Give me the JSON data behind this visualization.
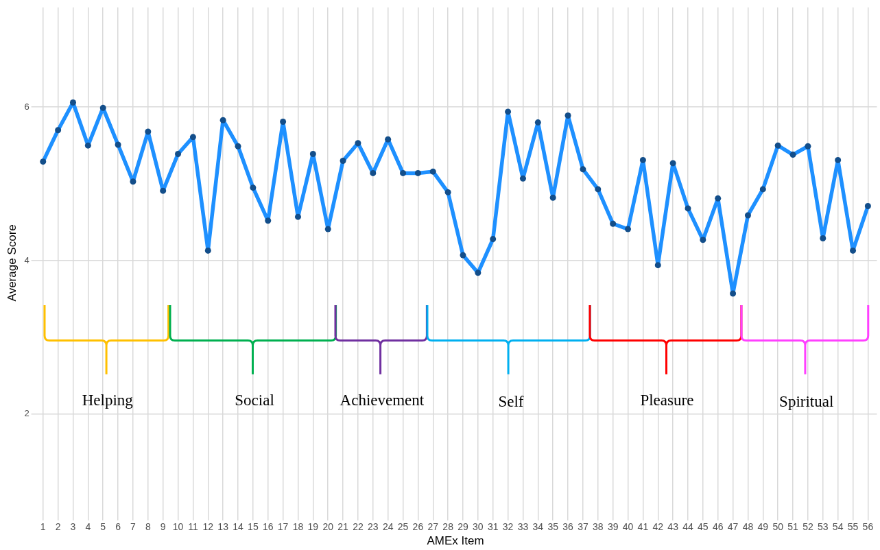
{
  "chart_data": {
    "type": "line",
    "xlabel": "AMEx Item",
    "ylabel": "Average Score",
    "x": [
      1,
      2,
      3,
      4,
      5,
      6,
      7,
      8,
      9,
      10,
      11,
      12,
      13,
      14,
      15,
      16,
      17,
      18,
      19,
      20,
      21,
      22,
      23,
      24,
      25,
      26,
      27,
      28,
      29,
      30,
      31,
      32,
      33,
      34,
      35,
      36,
      37,
      38,
      39,
      40,
      41,
      42,
      43,
      44,
      45,
      46,
      47,
      48,
      49,
      50,
      51,
      52,
      53,
      54,
      55,
      56
    ],
    "xlim": [
      0.4,
      56.6
    ],
    "xticks": [
      1,
      2,
      3,
      4,
      5,
      6,
      7,
      8,
      9,
      10,
      11,
      12,
      13,
      14,
      15,
      16,
      17,
      18,
      19,
      20,
      21,
      22,
      23,
      24,
      25,
      26,
      27,
      28,
      29,
      30,
      31,
      32,
      33,
      34,
      35,
      36,
      37,
      38,
      39,
      40,
      41,
      42,
      43,
      44,
      45,
      46,
      47,
      48,
      49,
      50,
      51,
      52,
      53,
      54,
      55,
      56
    ],
    "ylim": [
      0.64,
      7.3
    ],
    "yticks": [
      2,
      4,
      6
    ],
    "grid": true,
    "marker": "circle",
    "line_style": "solid",
    "series": [
      {
        "color": "#1e90ff",
        "values": [
          5.29,
          5.7,
          6.06,
          5.5,
          5.99,
          5.51,
          5.03,
          5.68,
          4.91,
          5.39,
          5.61,
          4.13,
          5.83,
          5.49,
          4.95,
          4.52,
          5.81,
          4.57,
          5.39,
          4.41,
          5.3,
          5.53,
          5.14,
          5.58,
          5.14,
          5.14,
          5.16,
          4.89,
          4.07,
          3.84,
          4.28,
          5.94,
          5.07,
          5.8,
          4.82,
          5.89,
          5.19,
          4.93,
          4.48,
          4.41,
          5.31,
          3.94,
          5.27,
          4.68,
          4.27,
          4.81,
          3.57,
          4.59,
          4.93,
          5.5,
          5.38,
          5.49,
          4.29,
          5.31,
          4.13,
          4.71
        ]
      }
    ],
    "annotations": [
      "Helping",
      "Social",
      "Achievement",
      "Self",
      "Pleasure",
      "Spiritual"
    ]
  }
}
